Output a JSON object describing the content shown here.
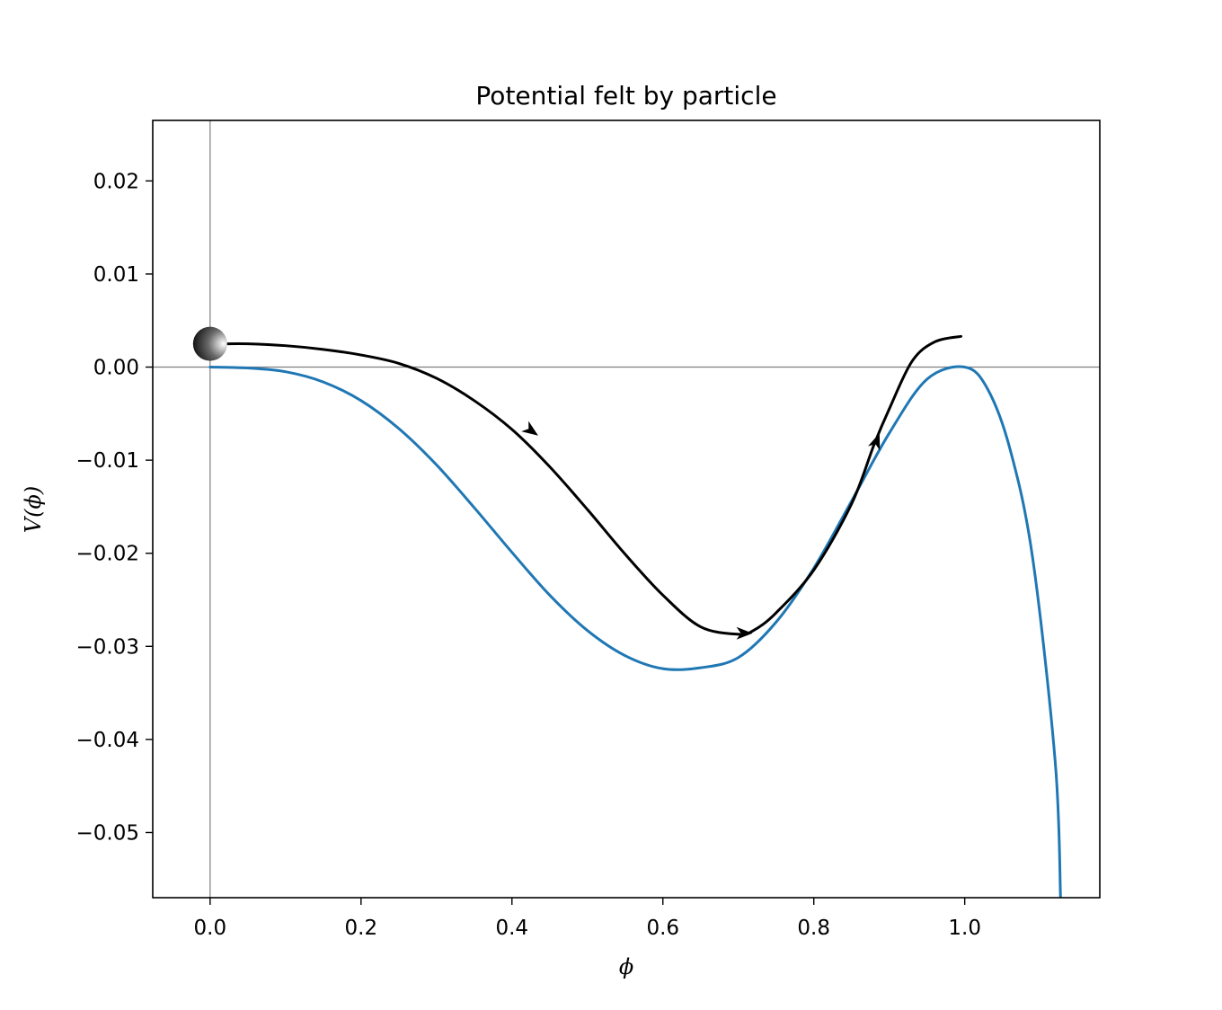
{
  "chart_data": {
    "type": "line",
    "title": "Potential felt by particle",
    "xlabel": "ϕ",
    "ylabel": "V(ϕ)",
    "xlim": [
      -0.076,
      1.179
    ],
    "ylim": [
      -0.057,
      0.0265
    ],
    "x_ticks": [
      {
        "value": 0.0,
        "label": "0.0"
      },
      {
        "value": 0.2,
        "label": "0.2"
      },
      {
        "value": 0.4,
        "label": "0.4"
      },
      {
        "value": 0.6,
        "label": "0.6"
      },
      {
        "value": 0.8,
        "label": "0.8"
      },
      {
        "value": 1.0,
        "label": "1.0"
      }
    ],
    "y_ticks": [
      {
        "value": 0.02,
        "label": "0.02"
      },
      {
        "value": 0.01,
        "label": "0.01"
      },
      {
        "value": 0.0,
        "label": "0.00"
      },
      {
        "value": -0.01,
        "label": "−0.01"
      },
      {
        "value": -0.02,
        "label": "−0.02"
      },
      {
        "value": -0.03,
        "label": "−0.03"
      },
      {
        "value": -0.04,
        "label": "−0.04"
      },
      {
        "value": -0.05,
        "label": "−0.05"
      }
    ],
    "reference_lines": {
      "x": 0.0,
      "y": 0.0,
      "color": "#808080"
    },
    "grid": false,
    "series": [
      {
        "color": "#1f77b4",
        "x": [
          0.0,
          0.05,
          0.1,
          0.15,
          0.2,
          0.25,
          0.3,
          0.35,
          0.4,
          0.45,
          0.5,
          0.55,
          0.6,
          0.65,
          0.7,
          0.75,
          0.8,
          0.85,
          0.9,
          0.95,
          1.0,
          1.03,
          1.06,
          1.09,
          1.12,
          1.127
        ],
        "y": [
          0.0,
          -0.0001,
          -0.0005,
          -0.0016,
          -0.0036,
          -0.0066,
          -0.0105,
          -0.0151,
          -0.0199,
          -0.0245,
          -0.0283,
          -0.031,
          -0.0324,
          -0.0323,
          -0.0312,
          -0.0274,
          -0.0216,
          -0.0144,
          -0.0071,
          -0.0013,
          0.0,
          -0.0023,
          -0.0088,
          -0.0205,
          -0.0425,
          -0.057
        ]
      },
      {
        "color": "#000000",
        "x": [
          0.02,
          0.05,
          0.1,
          0.15,
          0.2,
          0.25,
          0.3,
          0.35,
          0.4,
          0.45,
          0.5,
          0.55,
          0.6,
          0.65,
          0.7,
          0.72,
          0.75,
          0.8,
          0.85,
          0.88,
          0.9,
          0.93,
          0.96,
          0.995
        ],
        "y": [
          0.0025,
          0.0025,
          0.0023,
          0.0019,
          0.0013,
          0.0004,
          -0.0012,
          -0.0036,
          -0.0067,
          -0.0107,
          -0.0153,
          -0.0201,
          -0.0245,
          -0.0279,
          -0.0287,
          -0.0283,
          -0.0264,
          -0.0218,
          -0.0147,
          -0.0083,
          -0.0045,
          0.0006,
          0.0027,
          0.0033
        ]
      }
    ],
    "arrows": [
      {
        "x": 0.425,
        "y": -0.0068,
        "direction": "down-right"
      },
      {
        "x": 0.707,
        "y": -0.0286,
        "direction": "right"
      },
      {
        "x": 0.883,
        "y": -0.008,
        "direction": "up"
      }
    ],
    "marker": {
      "x": 0.0,
      "y": 0.0025,
      "shape": "sphere",
      "color": "#000000"
    }
  }
}
